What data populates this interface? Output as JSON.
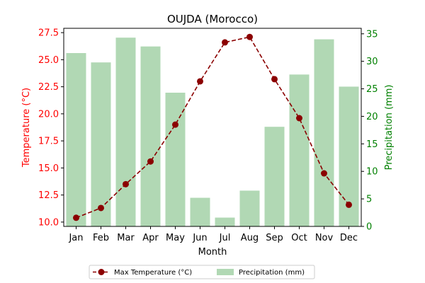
{
  "chart_data": {
    "type": "bar+line",
    "title": "OUJDA (Morocco)",
    "xlabel": "Month",
    "ylabel_left": "Temperature (°C)",
    "ylabel_right": "Precipitation (mm)",
    "categories": [
      "Jan",
      "Feb",
      "Mar",
      "Apr",
      "May",
      "Jun",
      "Jul",
      "Aug",
      "Sep",
      "Oct",
      "Nov",
      "Dec"
    ],
    "temperature": {
      "name": "Max Temperature (°C)",
      "values": [
        10.4,
        11.3,
        13.5,
        15.6,
        19.0,
        23.0,
        26.6,
        27.1,
        23.2,
        19.6,
        14.5,
        11.6
      ],
      "color": "#8b0000"
    },
    "precipitation": {
      "name": "Precipitation (mm)",
      "values": [
        31.5,
        29.8,
        34.3,
        32.7,
        24.3,
        5.2,
        1.6,
        6.5,
        18.1,
        27.6,
        34.0,
        25.4
      ],
      "color": "#b1d8b4"
    },
    "ylim_left": [
      9.6,
      27.9
    ],
    "ylim_right": [
      0,
      36
    ],
    "yticks_left": [
      "10.0",
      "12.5",
      "15.0",
      "17.5",
      "20.0",
      "22.5",
      "25.0",
      "27.5"
    ],
    "yticks_right": [
      "0",
      "5",
      "10",
      "15",
      "20",
      "25",
      "30",
      "35"
    ],
    "left_axis_color": "#ff0000",
    "right_axis_color": "#008000",
    "legend_position": "bottom-center"
  }
}
